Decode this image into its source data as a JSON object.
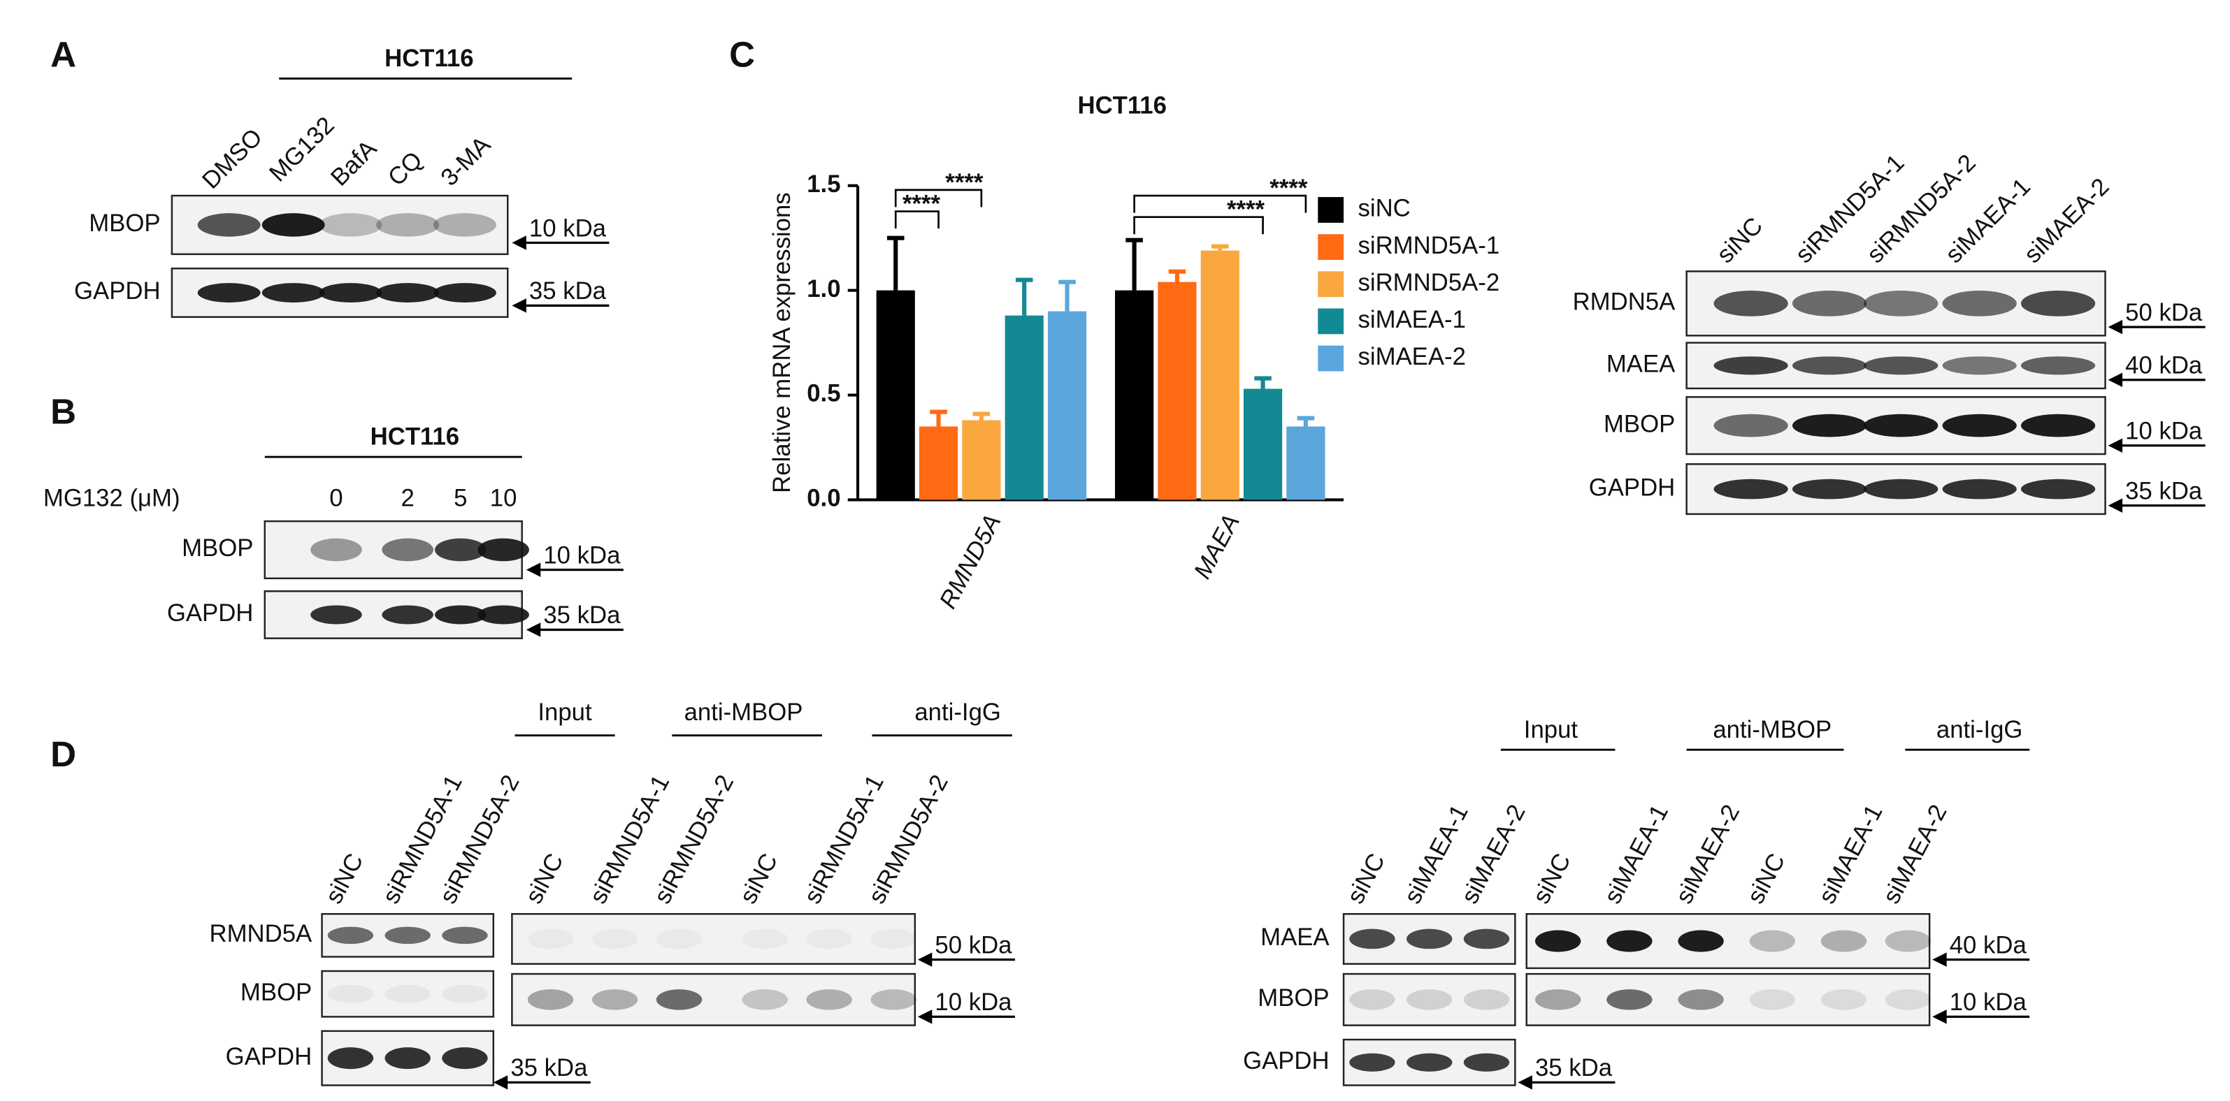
{
  "panel_a": {
    "letter": "A",
    "title": "HCT116",
    "lanes": [
      "DMSO",
      "MG132",
      "BafA",
      "CQ",
      "3-MA"
    ],
    "rows": [
      "MBOP",
      "GAPDH"
    ],
    "markers": [
      "10 kDa",
      "35 kDa"
    ]
  },
  "panel_b": {
    "letter": "B",
    "title": "HCT116",
    "dose_label": "MG132 (μM)",
    "lanes": [
      "0",
      "2",
      "5",
      "10"
    ],
    "rows": [
      "MBOP",
      "GAPDH"
    ],
    "markers": [
      "10 kDa",
      "35 kDa"
    ]
  },
  "panel_c": {
    "letter": "C",
    "lanes": [
      "siNC",
      "siRMND5A-1",
      "siRMND5A-2",
      "siMAEA-1",
      "siMAEA-2"
    ],
    "rows": [
      "RMDN5A",
      "MAEA",
      "MBOP",
      "GAPDH"
    ],
    "markers": [
      "50 kDa",
      "40 kDa",
      "10 kDa",
      "35 kDa"
    ]
  },
  "chart_data": {
    "type": "bar",
    "title": "HCT116",
    "y_label": "Relative mRNA expressions",
    "categories": [
      "RMND5A",
      "MAEA"
    ],
    "series": [
      {
        "name": "siNC",
        "color": "#000000",
        "values": [
          1.0,
          1.0
        ],
        "errors": [
          0.25,
          0.24
        ]
      },
      {
        "name": "siRMND5A-1",
        "color": "#ff6a13",
        "values": [
          0.35,
          1.04
        ],
        "errors": [
          0.07,
          0.05
        ]
      },
      {
        "name": "siRMND5A-2",
        "color": "#f9a73e",
        "values": [
          0.38,
          1.19
        ],
        "errors": [
          0.03,
          0.02
        ]
      },
      {
        "name": "siMAEA-1",
        "color": "#138a93",
        "values": [
          0.88,
          0.53
        ],
        "errors": [
          0.17,
          0.05
        ]
      },
      {
        "name": "siMAEA-2",
        "color": "#5ba6dd",
        "values": [
          0.9,
          0.35
        ],
        "errors": [
          0.14,
          0.04
        ]
      }
    ],
    "ylim": [
      0,
      1.5
    ],
    "yticks": [
      {
        "value": 0,
        "label": "0.0"
      },
      {
        "value": 0.5,
        "label": "0.5"
      },
      {
        "value": 1,
        "label": "1.0"
      },
      {
        "value": 1.5,
        "label": "1.5"
      }
    ],
    "annotations": [
      "****",
      "****",
      "****",
      "****"
    ]
  },
  "panel_d": {
    "letter": "D",
    "left": {
      "groups": [
        "Input",
        "anti-MBOP",
        "anti-IgG"
      ],
      "lanes": [
        "siNC",
        "siRMND5A-1",
        "siRMND5A-2",
        "siNC",
        "siRMND5A-1",
        "siRMND5A-2",
        "siNC",
        "siRMND5A-1",
        "siRMND5A-2"
      ],
      "rows": [
        "RMND5A",
        "MBOP",
        "GAPDH"
      ],
      "markers": [
        "50 kDa",
        "10 kDa",
        "35 kDa"
      ]
    },
    "right": {
      "groups": [
        "Input",
        "anti-MBOP",
        "anti-IgG"
      ],
      "lanes": [
        "siNC",
        "siMAEA-1",
        "siMAEA-2",
        "siNC",
        "siMAEA-1",
        "siMAEA-2",
        "siNC",
        "siMAEA-1",
        "siMAEA-2"
      ],
      "rows": [
        "MAEA",
        "MBOP",
        "GAPDH"
      ],
      "markers": [
        "40 kDa",
        "10 kDa",
        "35 kDa"
      ]
    }
  }
}
